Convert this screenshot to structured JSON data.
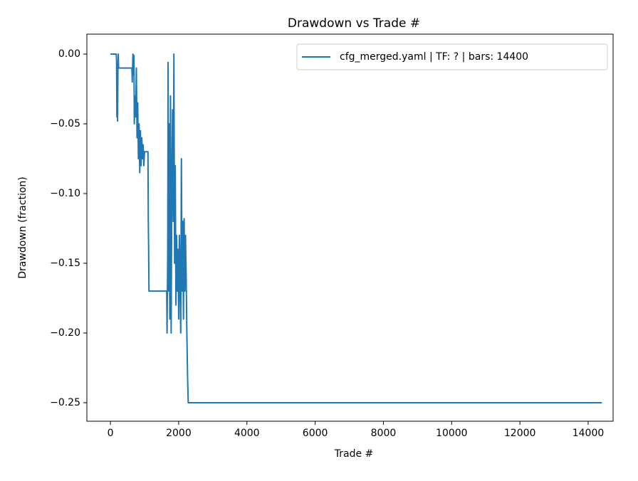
{
  "chart_data": {
    "type": "line",
    "title": "Drawdown vs Trade #",
    "x_label": "Trade #",
    "y_label": "Drawdown (fraction)",
    "x": [
      0,
      170,
      180,
      190,
      200,
      210,
      220,
      230,
      240,
      630,
      640,
      660,
      670,
      690,
      700,
      720,
      740,
      760,
      780,
      800,
      820,
      840,
      860,
      880,
      900,
      920,
      940,
      960,
      980,
      1000,
      1100,
      1110,
      1120,
      1130,
      1650,
      1660,
      1680,
      1690,
      1700,
      1720,
      1740,
      1760,
      1780,
      1800,
      1820,
      1840,
      1860,
      1880,
      1900,
      1920,
      1940,
      1960,
      1980,
      2000,
      2020,
      2040,
      2060,
      2080,
      2100,
      2120,
      2140,
      2160,
      2180,
      2200,
      2220,
      2240,
      2260,
      2280,
      14400
    ],
    "series": [
      {
        "name": "cfg_merged.yaml | TF: ? | bars: 14400",
        "color": "#1f77b4",
        "values": [
          0,
          0,
          -0.005,
          -0.045,
          -0.02,
          -0.048,
          -0.01,
          0,
          -0.01,
          -0.01,
          -0.02,
          0,
          -0.015,
          -0.001,
          -0.05,
          -0.03,
          -0.045,
          -0.01,
          -0.06,
          -0.035,
          -0.075,
          -0.05,
          -0.085,
          -0.055,
          -0.08,
          -0.06,
          -0.075,
          -0.065,
          -0.08,
          -0.07,
          -0.07,
          -0.12,
          -0.14,
          -0.17,
          -0.17,
          -0.2,
          -0.14,
          -0.006,
          -0.17,
          -0.05,
          -0.19,
          -0.03,
          -0.2,
          -0.09,
          -0.04,
          -0.12,
          0,
          -0.15,
          -0.08,
          -0.18,
          -0.13,
          -0.17,
          -0.14,
          -0.19,
          -0.13,
          -0.16,
          -0.2,
          -0.075,
          -0.17,
          -0.12,
          -0.19,
          -0.118,
          -0.17,
          -0.13,
          -0.16,
          -0.2,
          -0.23,
          -0.25,
          -0.25
        ]
      }
    ],
    "xlim": [
      -690,
      14730
    ],
    "xticks": [
      0,
      2000,
      4000,
      6000,
      8000,
      10000,
      12000,
      14000
    ],
    "ylim": [
      -0.2633,
      0.0143
    ],
    "yticks": [
      {
        "value": 0,
        "label": "0.00"
      },
      {
        "value": -0.05,
        "label": "−0.05"
      },
      {
        "value": -0.1,
        "label": "−0.10"
      },
      {
        "value": -0.15,
        "label": "−0.15"
      },
      {
        "value": -0.2,
        "label": "−0.20"
      },
      {
        "value": -0.25,
        "label": "−0.25"
      }
    ],
    "legend": "upper right",
    "grid": false
  }
}
